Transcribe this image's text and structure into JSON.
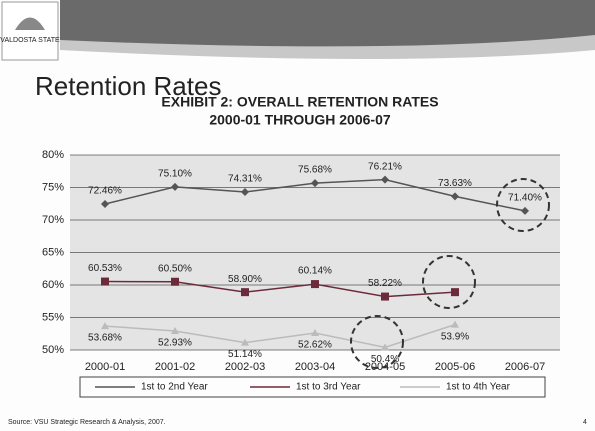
{
  "logo": "VALDOSTA STATE",
  "slide_title": "Retention Rates",
  "source": "Source: VSU Strategic Research & Analysis, 2007.",
  "page_number": "4",
  "chart_data": {
    "type": "line",
    "title": "EXHIBIT 2: OVERALL RETENTION RATES",
    "subtitle": "2000-01 THROUGH 2006-07",
    "categories": [
      "2000-01",
      "2001-02",
      "2002-03",
      "2003-04",
      "2004-05",
      "2005-06",
      "2006-07"
    ],
    "series": [
      {
        "name": "1st to 2nd Year",
        "color": "#555555",
        "marker": "diamond",
        "values": [
          72.46,
          75.1,
          74.31,
          75.68,
          76.21,
          73.63,
          71.4
        ],
        "value_labels": [
          "72.46%",
          "75.10%",
          "74.31%",
          "75.68%",
          "76.21%",
          "73.63%",
          "71.40%"
        ]
      },
      {
        "name": "1st to 3rd Year",
        "color": "#6b2b3a",
        "marker": "square",
        "values": [
          60.53,
          60.5,
          58.9,
          60.14,
          58.22,
          58.9,
          null
        ],
        "value_labels": [
          "60.53%",
          "60.50%",
          "58.90%",
          "60.14%",
          "58.22%",
          null,
          null
        ]
      },
      {
        "name": "1st to 4th Year",
        "color": "#bbbbbb",
        "marker": "triangle",
        "values": [
          53.68,
          52.93,
          51.14,
          52.62,
          50.4,
          53.9,
          null
        ],
        "value_labels": [
          "53.68%",
          "52.93%",
          "51.14%",
          "52.62%",
          "50.4%",
          "53.9%",
          null
        ]
      }
    ],
    "ylim": [
      50,
      80
    ],
    "yticks": [
      {
        "value": 50,
        "label": "50%"
      },
      {
        "value": 55,
        "label": "55%"
      },
      {
        "value": 60,
        "label": "60%"
      },
      {
        "value": 65,
        "label": "65%"
      },
      {
        "value": 70,
        "label": "70%"
      },
      {
        "value": 75,
        "label": "75%"
      },
      {
        "value": 80,
        "label": "80%"
      }
    ],
    "grid": true,
    "legend": "bottom"
  }
}
